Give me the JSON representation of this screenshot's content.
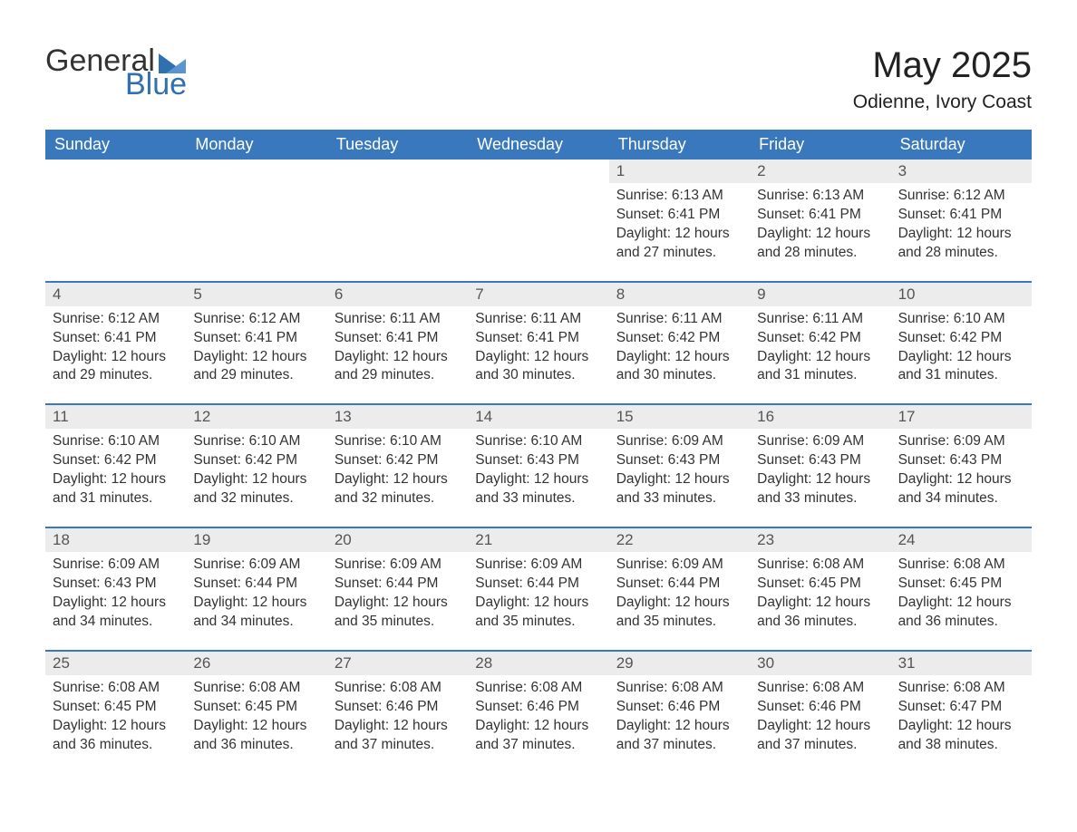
{
  "brand": {
    "name1": "General",
    "name2": "Blue",
    "accent": "#2f6fb2"
  },
  "title": "May 2025",
  "subtitle": "Odienne, Ivory Coast",
  "colors": {
    "headerBg": "#3a78bd",
    "headerText": "#ffffff",
    "dayNumBg": "#ececec",
    "text": "#333333",
    "pageBg": "#ffffff",
    "rowBorder": "#3a78bd"
  },
  "weekdays": [
    "Sunday",
    "Monday",
    "Tuesday",
    "Wednesday",
    "Thursday",
    "Friday",
    "Saturday"
  ],
  "weeks": [
    [
      {
        "empty": true
      },
      {
        "empty": true
      },
      {
        "empty": true
      },
      {
        "empty": true
      },
      {
        "num": "1",
        "sunrise": "6:13 AM",
        "sunset": "6:41 PM",
        "daylight": "12 hours and 27 minutes."
      },
      {
        "num": "2",
        "sunrise": "6:13 AM",
        "sunset": "6:41 PM",
        "daylight": "12 hours and 28 minutes."
      },
      {
        "num": "3",
        "sunrise": "6:12 AM",
        "sunset": "6:41 PM",
        "daylight": "12 hours and 28 minutes."
      }
    ],
    [
      {
        "num": "4",
        "sunrise": "6:12 AM",
        "sunset": "6:41 PM",
        "daylight": "12 hours and 29 minutes."
      },
      {
        "num": "5",
        "sunrise": "6:12 AM",
        "sunset": "6:41 PM",
        "daylight": "12 hours and 29 minutes."
      },
      {
        "num": "6",
        "sunrise": "6:11 AM",
        "sunset": "6:41 PM",
        "daylight": "12 hours and 29 minutes."
      },
      {
        "num": "7",
        "sunrise": "6:11 AM",
        "sunset": "6:41 PM",
        "daylight": "12 hours and 30 minutes."
      },
      {
        "num": "8",
        "sunrise": "6:11 AM",
        "sunset": "6:42 PM",
        "daylight": "12 hours and 30 minutes."
      },
      {
        "num": "9",
        "sunrise": "6:11 AM",
        "sunset": "6:42 PM",
        "daylight": "12 hours and 31 minutes."
      },
      {
        "num": "10",
        "sunrise": "6:10 AM",
        "sunset": "6:42 PM",
        "daylight": "12 hours and 31 minutes."
      }
    ],
    [
      {
        "num": "11",
        "sunrise": "6:10 AM",
        "sunset": "6:42 PM",
        "daylight": "12 hours and 31 minutes."
      },
      {
        "num": "12",
        "sunrise": "6:10 AM",
        "sunset": "6:42 PM",
        "daylight": "12 hours and 32 minutes."
      },
      {
        "num": "13",
        "sunrise": "6:10 AM",
        "sunset": "6:42 PM",
        "daylight": "12 hours and 32 minutes."
      },
      {
        "num": "14",
        "sunrise": "6:10 AM",
        "sunset": "6:43 PM",
        "daylight": "12 hours and 33 minutes."
      },
      {
        "num": "15",
        "sunrise": "6:09 AM",
        "sunset": "6:43 PM",
        "daylight": "12 hours and 33 minutes."
      },
      {
        "num": "16",
        "sunrise": "6:09 AM",
        "sunset": "6:43 PM",
        "daylight": "12 hours and 33 minutes."
      },
      {
        "num": "17",
        "sunrise": "6:09 AM",
        "sunset": "6:43 PM",
        "daylight": "12 hours and 34 minutes."
      }
    ],
    [
      {
        "num": "18",
        "sunrise": "6:09 AM",
        "sunset": "6:43 PM",
        "daylight": "12 hours and 34 minutes."
      },
      {
        "num": "19",
        "sunrise": "6:09 AM",
        "sunset": "6:44 PM",
        "daylight": "12 hours and 34 minutes."
      },
      {
        "num": "20",
        "sunrise": "6:09 AM",
        "sunset": "6:44 PM",
        "daylight": "12 hours and 35 minutes."
      },
      {
        "num": "21",
        "sunrise": "6:09 AM",
        "sunset": "6:44 PM",
        "daylight": "12 hours and 35 minutes."
      },
      {
        "num": "22",
        "sunrise": "6:09 AM",
        "sunset": "6:44 PM",
        "daylight": "12 hours and 35 minutes."
      },
      {
        "num": "23",
        "sunrise": "6:08 AM",
        "sunset": "6:45 PM",
        "daylight": "12 hours and 36 minutes."
      },
      {
        "num": "24",
        "sunrise": "6:08 AM",
        "sunset": "6:45 PM",
        "daylight": "12 hours and 36 minutes."
      }
    ],
    [
      {
        "num": "25",
        "sunrise": "6:08 AM",
        "sunset": "6:45 PM",
        "daylight": "12 hours and 36 minutes."
      },
      {
        "num": "26",
        "sunrise": "6:08 AM",
        "sunset": "6:45 PM",
        "daylight": "12 hours and 36 minutes."
      },
      {
        "num": "27",
        "sunrise": "6:08 AM",
        "sunset": "6:46 PM",
        "daylight": "12 hours and 37 minutes."
      },
      {
        "num": "28",
        "sunrise": "6:08 AM",
        "sunset": "6:46 PM",
        "daylight": "12 hours and 37 minutes."
      },
      {
        "num": "29",
        "sunrise": "6:08 AM",
        "sunset": "6:46 PM",
        "daylight": "12 hours and 37 minutes."
      },
      {
        "num": "30",
        "sunrise": "6:08 AM",
        "sunset": "6:46 PM",
        "daylight": "12 hours and 37 minutes."
      },
      {
        "num": "31",
        "sunrise": "6:08 AM",
        "sunset": "6:47 PM",
        "daylight": "12 hours and 38 minutes."
      }
    ]
  ],
  "labels": {
    "sunrise": "Sunrise: ",
    "sunset": "Sunset: ",
    "daylight": "Daylight: "
  }
}
